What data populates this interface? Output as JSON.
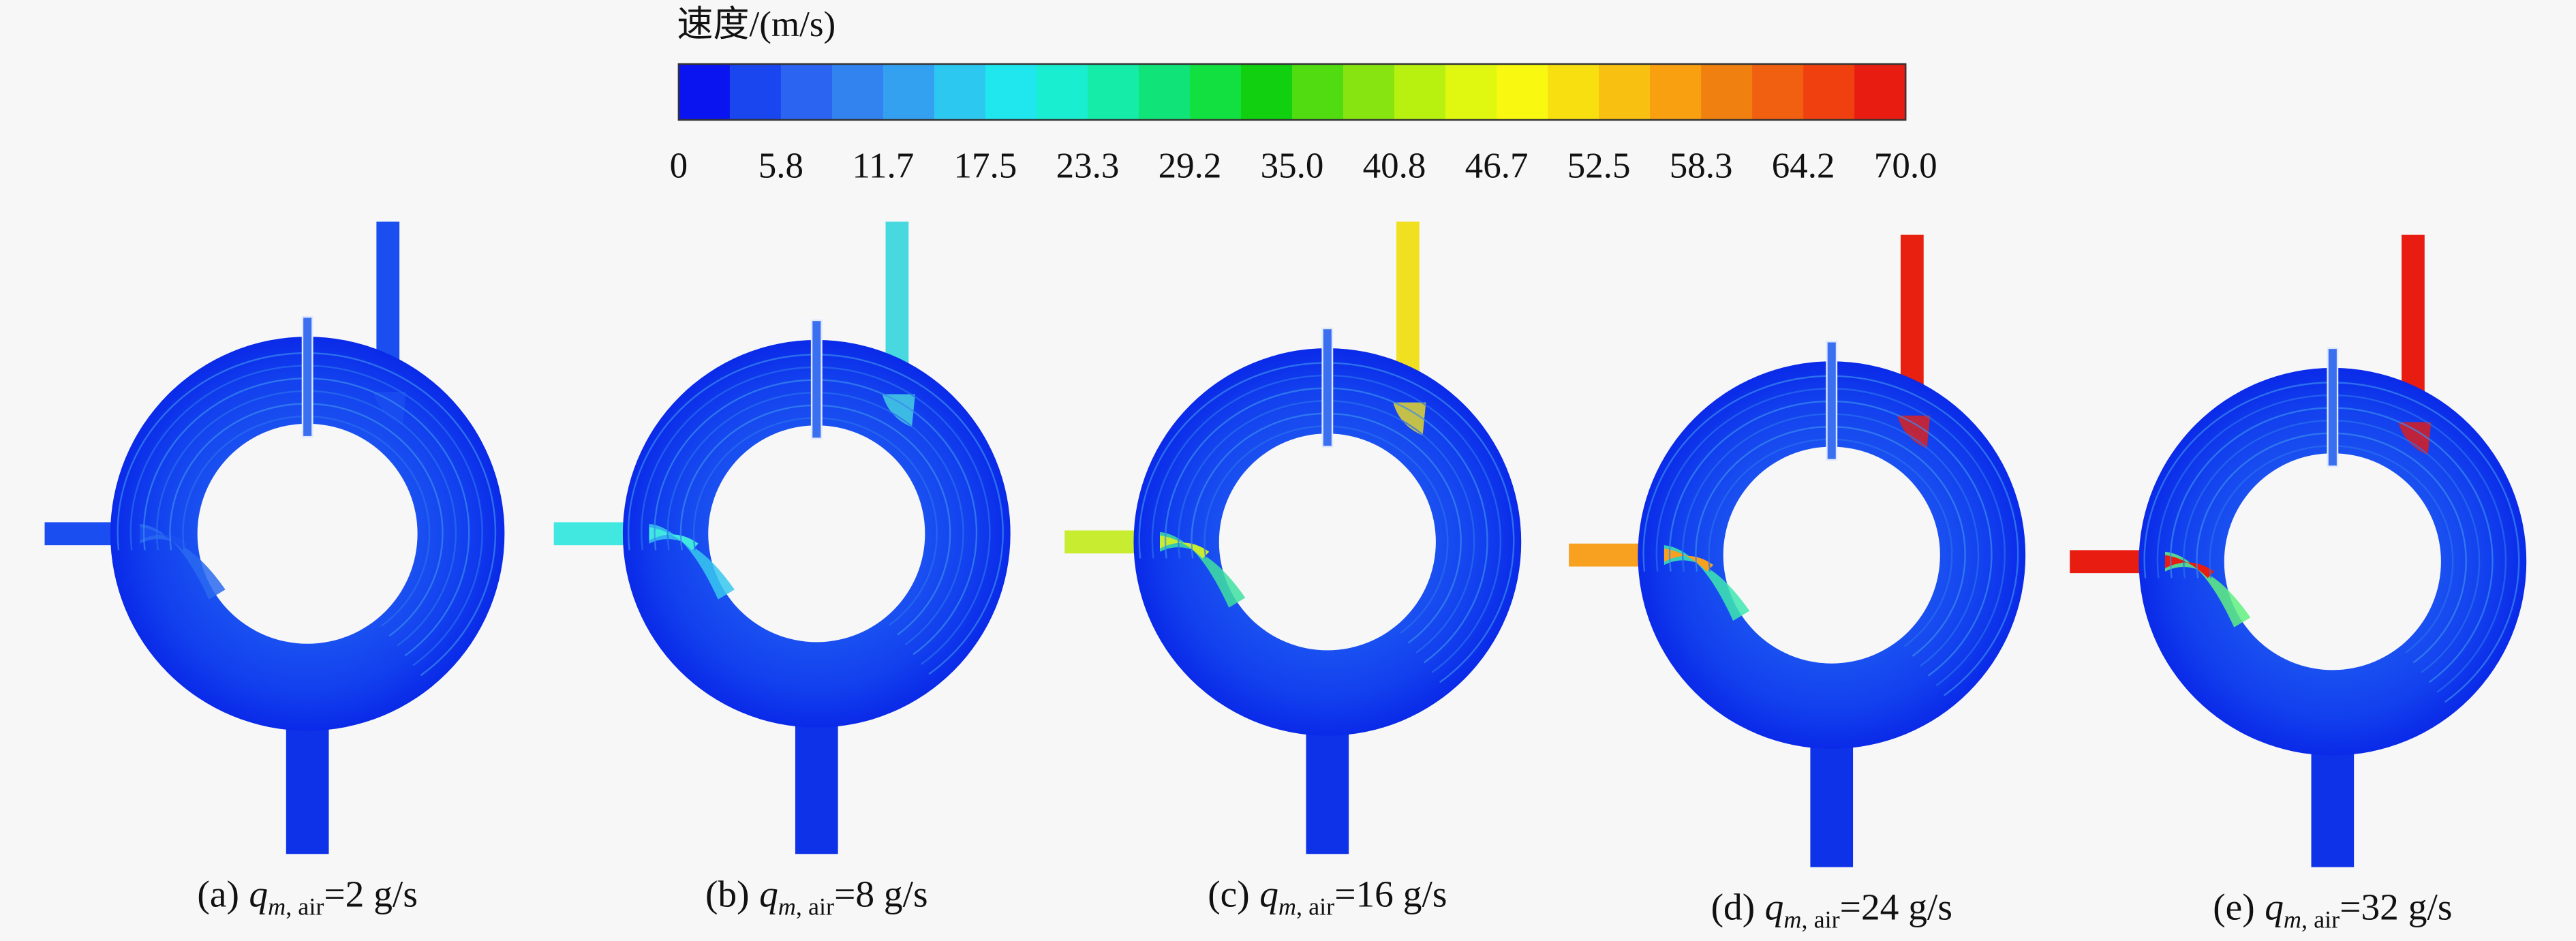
{
  "colorbar": {
    "title": "速度/(m/s)",
    "ticks": [
      "0",
      "5.8",
      "11.7",
      "17.5",
      "23.3",
      "29.2",
      "35.0",
      "40.8",
      "46.7",
      "52.5",
      "58.3",
      "64.2",
      "70.0"
    ],
    "colors": [
      "#0a14f0",
      "#1a46f0",
      "#2a64f0",
      "#3282f0",
      "#34a0f0",
      "#2cc8f0",
      "#20e6ee",
      "#1aeed0",
      "#14eca8",
      "#10e478",
      "#12e040",
      "#10d010",
      "#50dc10",
      "#88e410",
      "#b8f010",
      "#e0f810",
      "#f8f810",
      "#f8e010",
      "#f8c010",
      "#f8a010",
      "#f08010",
      "#f06010",
      "#f04010",
      "#e81c10"
    ]
  },
  "panels": [
    {
      "tag": "(a)",
      "var": "q",
      "sub_m": "m",
      "sub_air": ", air",
      "rest": "=2 g/s"
    },
    {
      "tag": "(b)",
      "var": "q",
      "sub_m": "m",
      "sub_air": ", air",
      "rest": "=8 g/s"
    },
    {
      "tag": "(c)",
      "var": "q",
      "sub_m": "m",
      "sub_air": ", air",
      "rest": "=16 g/s"
    },
    {
      "tag": "(d)",
      "var": "q",
      "sub_m": "m",
      "sub_air": ", air",
      "rest": "=24 g/s"
    },
    {
      "tag": "(e)",
      "var": "q",
      "sub_m": "m",
      "sub_air": ", air",
      "rest": "=32 g/s"
    }
  ]
}
